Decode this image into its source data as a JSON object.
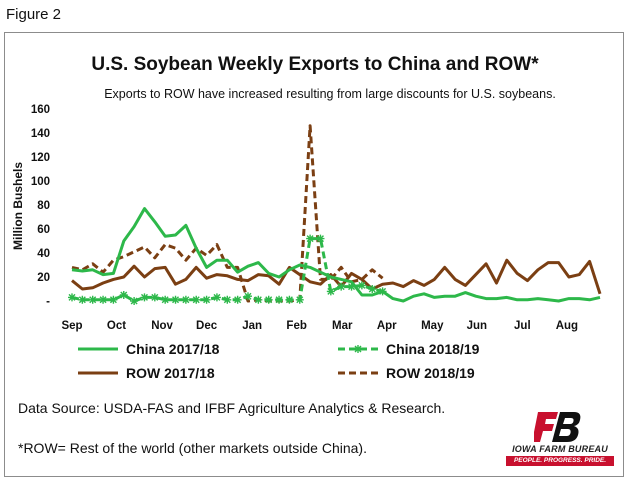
{
  "figure_label": "Figure 2",
  "source_note": "Data Source:  USDA-FAS and IFBF Agriculture Analytics & Research.",
  "footnote": "*ROW= Rest of the world (other markets outside China).",
  "logo": {
    "name": "IOWA FARM BUREAU",
    "tagline": "PEOPLE. PROGRESS. PRIDE.",
    "brand_color": "#c8102e"
  },
  "chart_data": {
    "type": "line",
    "title": "U.S. Soybean Weekly Exports to China and ROW*",
    "subtitle": "Exports to ROW have increased resulting from large discounts for U.S. soybeans.",
    "ylabel": "Million Bushels",
    "xlabel": "",
    "ylim": [
      0,
      160
    ],
    "y_ticks": [
      0,
      20,
      40,
      60,
      80,
      100,
      120,
      140,
      160
    ],
    "y_tick_labels": [
      "-",
      "20",
      "40",
      "60",
      "80",
      "100",
      "120",
      "140",
      "160"
    ],
    "x_month_labels": [
      "Sep",
      "Oct",
      "Nov",
      "Dec",
      "Jan",
      "Feb",
      "Mar",
      "Apr",
      "May",
      "Jun",
      "Jul",
      "Aug"
    ],
    "x_month_start_week": [
      0,
      4.3,
      8.7,
      13,
      17.4,
      21.7,
      26.1,
      30.4,
      34.8,
      39.1,
      43.5,
      47.8
    ],
    "legend_position": "bottom",
    "grid": false,
    "series": [
      {
        "name": "China 2017/18",
        "color": "#2db84a",
        "style": "solid",
        "x": [
          0,
          1,
          2,
          3,
          4,
          5,
          6,
          7,
          8,
          9,
          10,
          11,
          12,
          13,
          14,
          15,
          16,
          17,
          18,
          19,
          20,
          21,
          22,
          23,
          24,
          25,
          26,
          27,
          28,
          29,
          30,
          31,
          32,
          33,
          34,
          35,
          36,
          37,
          38,
          39,
          40,
          41,
          42,
          43,
          44,
          45,
          46,
          47,
          48,
          49,
          50,
          51
        ],
        "values": [
          26,
          25,
          26,
          22,
          23,
          50,
          62,
          77,
          66,
          54,
          55,
          63,
          44,
          28,
          34,
          34,
          24,
          29,
          32,
          23,
          20,
          26,
          30,
          28,
          24,
          20,
          18,
          16,
          5,
          5,
          8,
          2,
          0,
          4,
          6,
          3,
          4,
          4,
          7,
          4,
          2,
          2,
          3,
          1,
          1,
          2,
          1,
          0,
          2,
          2,
          1,
          3
        ]
      },
      {
        "name": "China 2018/19",
        "color": "#2db84a",
        "style": "dashed-star",
        "x": [
          0,
          1,
          2,
          3,
          4,
          5,
          6,
          7,
          8,
          9,
          10,
          11,
          12,
          13,
          14,
          15,
          16,
          17,
          18,
          19,
          20,
          21,
          22,
          23,
          24,
          25,
          26,
          27,
          28,
          29,
          30
        ],
        "values": [
          3,
          1,
          1,
          1,
          1,
          5,
          0,
          3,
          3,
          1,
          1,
          1,
          1,
          1,
          3,
          1,
          1,
          4,
          1,
          1,
          1,
          1,
          1,
          52,
          52,
          8,
          12,
          12,
          13,
          10,
          8
        ]
      },
      {
        "name": "ROW 2017/18",
        "color": "#7b3f13",
        "style": "solid",
        "x": [
          0,
          1,
          2,
          3,
          4,
          5,
          6,
          7,
          8,
          9,
          10,
          11,
          12,
          13,
          14,
          15,
          16,
          17,
          18,
          19,
          20,
          21,
          22,
          23,
          24,
          25,
          26,
          27,
          28,
          29,
          30,
          31,
          32,
          33,
          34,
          35,
          36,
          37,
          38,
          39,
          40,
          41,
          42,
          43,
          44,
          45,
          46,
          47,
          48,
          49,
          50,
          51
        ],
        "values": [
          17,
          10,
          11,
          15,
          18,
          20,
          29,
          20,
          27,
          28,
          14,
          18,
          28,
          19,
          22,
          21,
          18,
          17,
          22,
          21,
          14,
          28,
          22,
          16,
          14,
          22,
          12,
          23,
          18,
          10,
          14,
          15,
          12,
          17,
          13,
          18,
          28,
          18,
          13,
          22,
          31,
          15,
          34,
          23,
          17,
          26,
          32,
          32,
          20,
          22,
          33,
          6
        ]
      },
      {
        "name": "ROW 2018/19",
        "color": "#7b3f13",
        "style": "dashed",
        "x": [
          0,
          1,
          2,
          3,
          4,
          5,
          6,
          7,
          8,
          9,
          10,
          11,
          12,
          13,
          14,
          15,
          16,
          17,
          18,
          19,
          20,
          21,
          22,
          23,
          24,
          25,
          26,
          27,
          28,
          29,
          30
        ],
        "values": [
          28,
          26,
          31,
          24,
          34,
          37,
          41,
          45,
          36,
          47,
          44,
          34,
          44,
          38,
          47,
          28,
          28,
          0,
          1,
          0,
          0,
          0,
          1,
          146,
          18,
          18,
          28,
          16,
          18,
          26,
          19
        ]
      }
    ]
  }
}
